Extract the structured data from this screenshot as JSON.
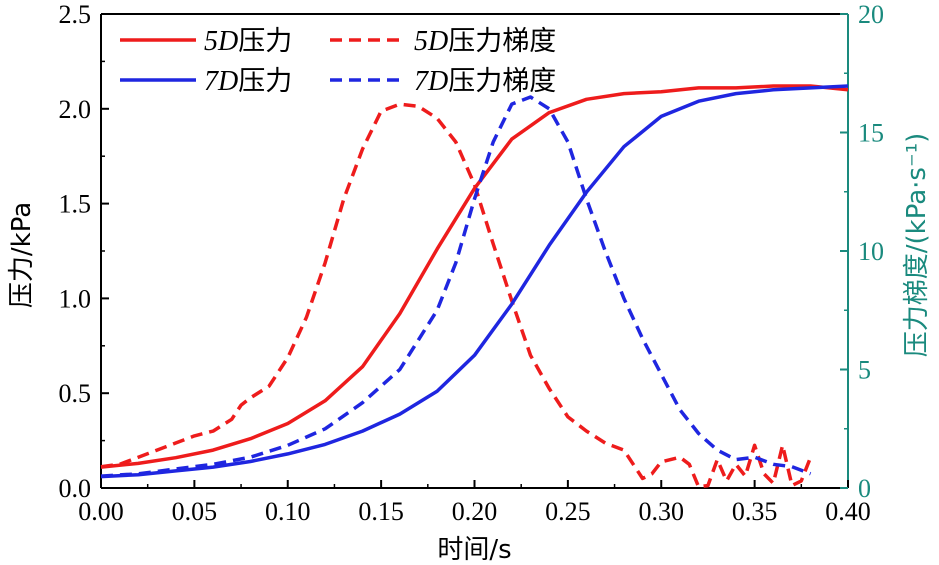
{
  "chart_data": {
    "type": "line",
    "title": "",
    "xlabel": "时间/s",
    "ylabel": "压力/kPa",
    "y2label": "压力梯度/(kPa·s⁻¹)",
    "xlim": [
      0,
      0.4
    ],
    "ylim": [
      0,
      2.5
    ],
    "y2lim": [
      0,
      20
    ],
    "xticks": [
      "0.00",
      "0.05",
      "0.10",
      "0.15",
      "0.20",
      "0.25",
      "0.30",
      "0.35",
      "0.40"
    ],
    "yticks": [
      "0.0",
      "0.5",
      "1.0",
      "1.5",
      "2.0",
      "2.5"
    ],
    "y2ticks": [
      "0",
      "5",
      "10",
      "15",
      "20"
    ],
    "legend_position": "top-left",
    "colors": {
      "red": "#ee1c1c",
      "blue": "#1f26e0",
      "right_axis": "#1a8a7e"
    },
    "series": [
      {
        "name": "5D压力",
        "label_italic": "5D",
        "label_text": "压力",
        "axis": "left",
        "color": "#ee1c1c",
        "dash": "solid",
        "x": [
          0.0,
          0.02,
          0.04,
          0.06,
          0.08,
          0.1,
          0.12,
          0.14,
          0.16,
          0.18,
          0.2,
          0.22,
          0.24,
          0.26,
          0.28,
          0.3,
          0.32,
          0.34,
          0.36,
          0.38,
          0.39,
          0.4
        ],
        "values": [
          0.11,
          0.13,
          0.16,
          0.2,
          0.26,
          0.34,
          0.46,
          0.64,
          0.92,
          1.26,
          1.58,
          1.84,
          1.98,
          2.05,
          2.08,
          2.09,
          2.11,
          2.11,
          2.12,
          2.12,
          2.11,
          2.1
        ]
      },
      {
        "name": "5D压力梯度",
        "label_italic": "5D",
        "label_text": "压力梯度",
        "axis": "right",
        "color": "#ee1c1c",
        "dash": "dashed",
        "x": [
          0.0,
          0.01,
          0.02,
          0.03,
          0.04,
          0.05,
          0.06,
          0.07,
          0.075,
          0.08,
          0.09,
          0.1,
          0.11,
          0.12,
          0.13,
          0.14,
          0.15,
          0.16,
          0.17,
          0.18,
          0.19,
          0.2,
          0.21,
          0.22,
          0.23,
          0.24,
          0.25,
          0.26,
          0.27,
          0.28,
          0.29,
          0.295,
          0.3,
          0.31,
          0.315,
          0.32,
          0.325,
          0.33,
          0.335,
          0.34,
          0.345,
          0.35,
          0.355,
          0.36,
          0.365,
          0.37,
          0.375,
          0.38
        ],
        "values": [
          0.9,
          1.0,
          1.3,
          1.6,
          1.9,
          2.2,
          2.4,
          2.9,
          3.5,
          3.8,
          4.3,
          5.5,
          7.2,
          9.5,
          12.2,
          14.3,
          15.9,
          16.2,
          16.1,
          15.6,
          14.6,
          12.8,
          10.3,
          7.9,
          5.6,
          4.2,
          3.0,
          2.4,
          1.9,
          1.6,
          0.4,
          0.6,
          1.1,
          1.3,
          1.0,
          0.05,
          0.1,
          1.2,
          0.3,
          1.0,
          0.5,
          1.8,
          0.6,
          0.2,
          1.8,
          0.1,
          0.3,
          1.3
        ]
      },
      {
        "name": "7D压力",
        "label_italic": "7D",
        "label_text": "压力",
        "axis": "left",
        "color": "#1f26e0",
        "dash": "solid",
        "x": [
          0.0,
          0.02,
          0.04,
          0.06,
          0.08,
          0.1,
          0.12,
          0.14,
          0.16,
          0.18,
          0.2,
          0.22,
          0.24,
          0.26,
          0.28,
          0.3,
          0.32,
          0.34,
          0.36,
          0.38,
          0.4
        ],
        "values": [
          0.06,
          0.07,
          0.09,
          0.11,
          0.14,
          0.18,
          0.23,
          0.3,
          0.39,
          0.51,
          0.7,
          0.97,
          1.28,
          1.56,
          1.8,
          1.96,
          2.04,
          2.08,
          2.1,
          2.11,
          2.12
        ]
      },
      {
        "name": "7D压力梯度",
        "label_italic": "7D",
        "label_text": "压力梯度",
        "axis": "right",
        "color": "#1f26e0",
        "dash": "dashed",
        "x": [
          0.0,
          0.02,
          0.04,
          0.06,
          0.08,
          0.1,
          0.12,
          0.14,
          0.16,
          0.18,
          0.19,
          0.2,
          0.21,
          0.22,
          0.23,
          0.24,
          0.25,
          0.26,
          0.27,
          0.28,
          0.29,
          0.3,
          0.31,
          0.32,
          0.33,
          0.34,
          0.35,
          0.36,
          0.37,
          0.38
        ],
        "values": [
          0.5,
          0.6,
          0.8,
          1.0,
          1.3,
          1.8,
          2.5,
          3.6,
          5.0,
          7.5,
          9.5,
          12.2,
          14.6,
          16.2,
          16.5,
          16.0,
          14.6,
          12.2,
          10.0,
          8.0,
          6.3,
          4.8,
          3.3,
          2.3,
          1.6,
          1.2,
          1.3,
          1.0,
          0.9,
          0.6
        ]
      }
    ]
  }
}
